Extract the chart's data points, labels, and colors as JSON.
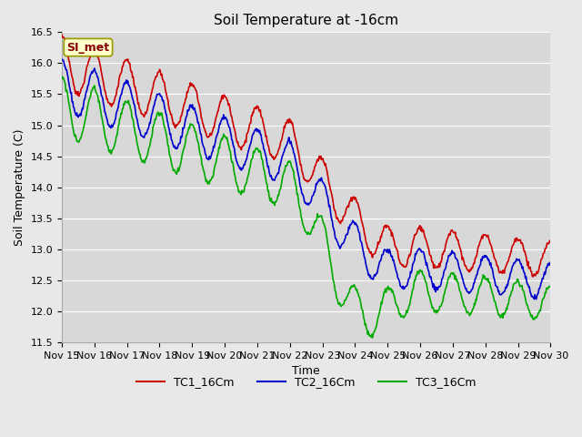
{
  "title": "Soil Temperature at -16cm",
  "xlabel": "Time",
  "ylabel": "Soil Temperature (C)",
  "ylim": [
    11.5,
    16.5
  ],
  "xlim": [
    0,
    15
  ],
  "x_tick_labels": [
    "Nov 15",
    "Nov 16",
    "Nov 17",
    "Nov 18",
    "Nov 19",
    "Nov 20",
    "Nov 21",
    "Nov 22",
    "Nov 23",
    "Nov 24",
    "Nov 25",
    "Nov 26",
    "Nov 27",
    "Nov 28",
    "Nov 29",
    "Nov 30"
  ],
  "colors": {
    "TC1": "#cc0000",
    "TC2": "#0000cc",
    "TC3": "#00aa00"
  },
  "legend_label": "SI_met",
  "legend_box_facecolor": "#ffffcc",
  "legend_box_edgecolor": "#999900",
  "legend_text_color": "#880000",
  "fig_facecolor": "#e8e8e8",
  "plot_facecolor": "#d8d8d8",
  "grid_color": "#ffffff",
  "title_fontsize": 11,
  "axis_fontsize": 9,
  "tick_fontsize": 8,
  "legend_fontsize": 9,
  "line_width": 1.2,
  "figsize": [
    6.4,
    4.8
  ],
  "dpi": 100
}
